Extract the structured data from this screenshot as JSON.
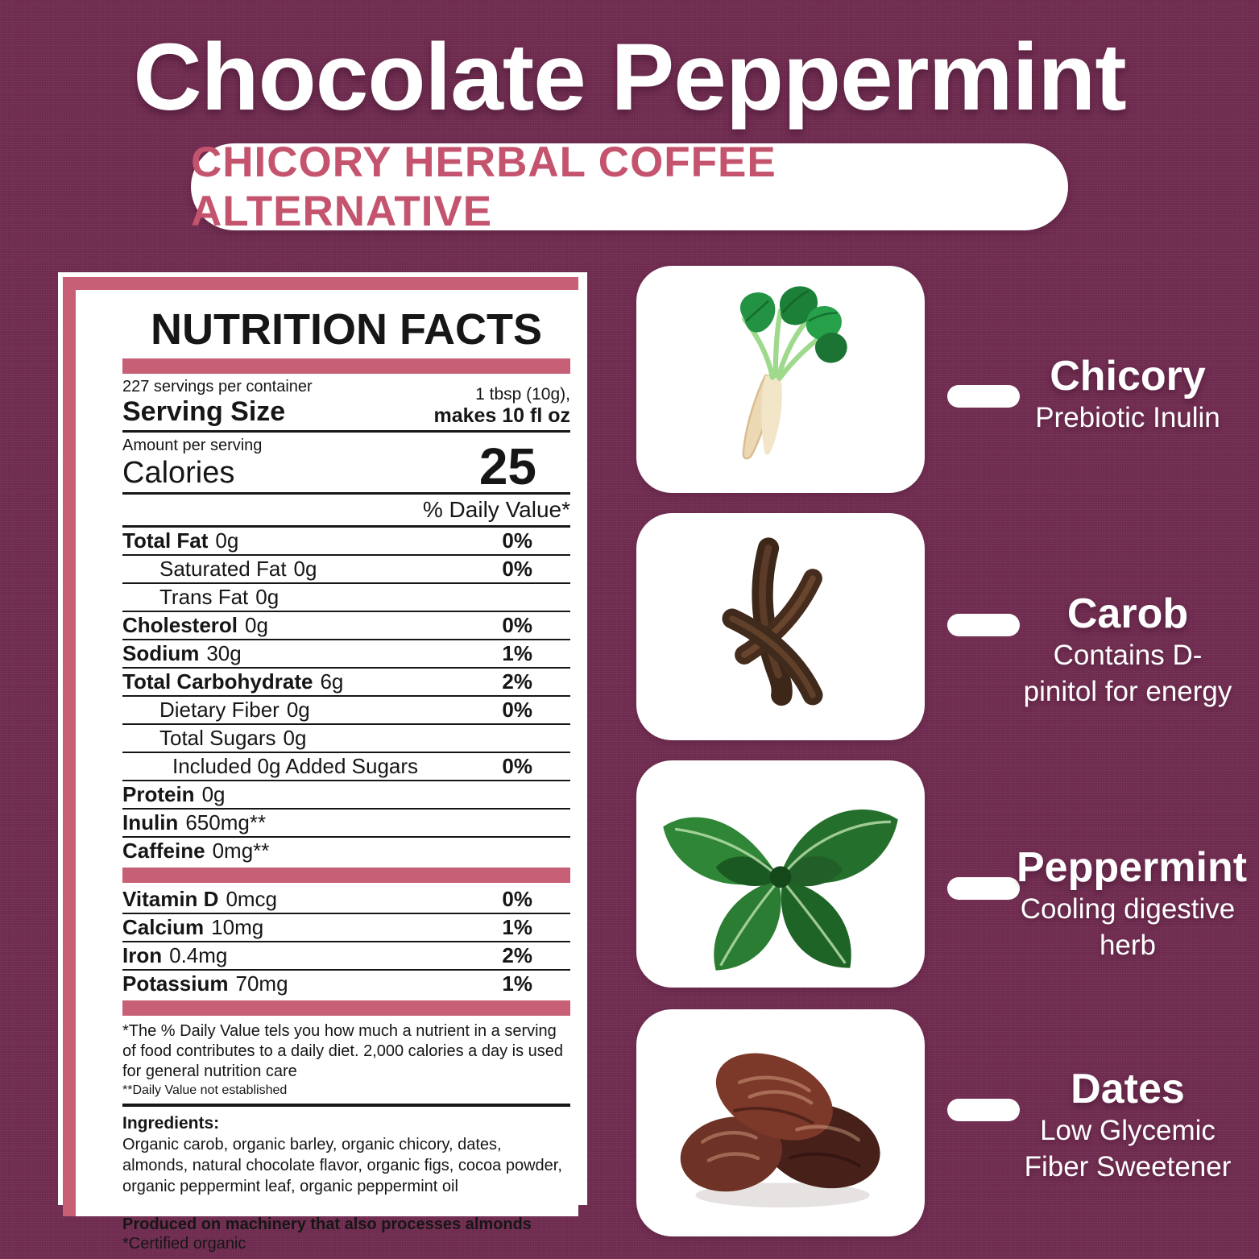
{
  "page": {
    "title": "Chocolate Peppermint",
    "subtitle": "CHICORY HERBAL COFFEE ALTERNATIVE"
  },
  "colors": {
    "background": "#6e2a4e",
    "accent_pink": "#c75f77",
    "subtitle_text": "#c4536e",
    "text": "#161616"
  },
  "nutrition": {
    "header": "NUTRITION FACTS",
    "servings_per_container": "227 servings per container",
    "serving_size_label": "Serving Size",
    "serving_size_value_line1": "1 tbsp (10g),",
    "serving_size_value_line2": "makes 10 fl oz",
    "amount_per_serving": "Amount per serving",
    "calories_label": "Calories",
    "calories_value": "25",
    "daily_value_header": "% Daily Value*",
    "rows": [
      {
        "label": "Total Fat",
        "value": "0g",
        "pct": "0%",
        "indent": 0,
        "bold": true
      },
      {
        "label": "Saturated Fat",
        "value": "0g",
        "pct": "0%",
        "indent": 1,
        "bold": false
      },
      {
        "label": "Trans Fat",
        "value": "0g",
        "pct": "",
        "indent": 1,
        "bold": false
      },
      {
        "label": "Cholesterol",
        "value": "0g",
        "pct": "0%",
        "indent": 0,
        "bold": true
      },
      {
        "label": "Sodium",
        "value": "30g",
        "pct": "1%",
        "indent": 0,
        "bold": true
      },
      {
        "label": "Total Carbohydrate",
        "value": "6g",
        "pct": "2%",
        "indent": 0,
        "bold": true
      },
      {
        "label": "Dietary Fiber",
        "value": "0g",
        "pct": "0%",
        "indent": 1,
        "bold": false
      },
      {
        "label": "Total Sugars",
        "value": "0g",
        "pct": "",
        "indent": 1,
        "bold": false
      },
      {
        "label": "Included 0g Added Sugars",
        "value": "",
        "pct": "0%",
        "indent": 2,
        "bold": false
      },
      {
        "label": "Protein",
        "value": "0g",
        "pct": "",
        "indent": 0,
        "bold": true
      },
      {
        "label": "Inulin",
        "value": "650mg**",
        "pct": "",
        "indent": 0,
        "bold": true
      },
      {
        "label": "Caffeine",
        "value": "0mg**",
        "pct": "",
        "indent": 0,
        "bold": true
      }
    ],
    "micronutrients": [
      {
        "label": "Vitamin D",
        "value": "0mcg",
        "pct": "0%",
        "indent": 0,
        "bold": true
      },
      {
        "label": "Calcium",
        "value": "10mg",
        "pct": "1%",
        "indent": 0,
        "bold": true
      },
      {
        "label": "Iron",
        "value": "0.4mg",
        "pct": "2%",
        "indent": 0,
        "bold": true
      },
      {
        "label": "Potassium",
        "value": "70mg",
        "pct": "1%",
        "indent": 0,
        "bold": true
      }
    ],
    "footnote1": "*The % Daily Value tels you how much a nutrient in a serving of food contributes to a daily diet. 2,000 calories a day is used for general nutrition care",
    "footnote2": "**Daily Value not established",
    "ingredients_label": "Ingredients:",
    "ingredients_text": "Organic carob, organic barley, organic chicory, dates, almonds, natural chocolate flavor, organic figs, cocoa powder, organic peppermint leaf, organic peppermint oil",
    "allergen_note": "Produced on machinery that also processes almonds",
    "certified_note": "*Certified organic"
  },
  "ingredients_panel": [
    {
      "name": "Chicory",
      "desc": "Prebiotic Inulin",
      "icon": "chicory-root-photo"
    },
    {
      "name": "Carob",
      "desc": "Contains D-pinitol for energy",
      "icon": "carob-pods-photo"
    },
    {
      "name": "Peppermint",
      "desc": "Cooling digestive herb",
      "icon": "peppermint-leaves-photo"
    },
    {
      "name": "Dates",
      "desc": "Low Glycemic Fiber Sweetener",
      "icon": "dates-photo"
    }
  ]
}
